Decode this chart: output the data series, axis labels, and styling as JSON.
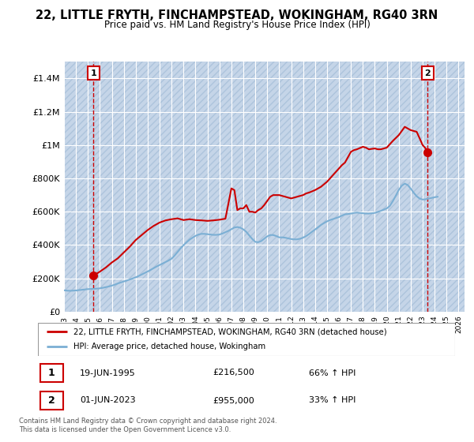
{
  "title": "22, LITTLE FRYTH, FINCHAMPSTEAD, WOKINGHAM, RG40 3RN",
  "subtitle": "Price paid vs. HM Land Registry's House Price Index (HPI)",
  "ylim": [
    0,
    1500000
  ],
  "yticks": [
    0,
    200000,
    400000,
    600000,
    800000,
    1000000,
    1200000,
    1400000
  ],
  "ytick_labels": [
    "£0",
    "£200K",
    "£400K",
    "£600K",
    "£800K",
    "£1M",
    "£1.2M",
    "£1.4M"
  ],
  "xlim_start": 1993.0,
  "xlim_end": 2026.5,
  "xtick_years": [
    1993,
    1994,
    1995,
    1996,
    1997,
    1998,
    1999,
    2000,
    2001,
    2002,
    2003,
    2004,
    2005,
    2006,
    2007,
    2008,
    2009,
    2010,
    2011,
    2012,
    2013,
    2014,
    2015,
    2016,
    2017,
    2018,
    2019,
    2020,
    2021,
    2022,
    2023,
    2024,
    2025,
    2026
  ],
  "fig_bg_color": "#ffffff",
  "plot_bg_color": "#dce6f1",
  "hatch_color": "#c5d5e8",
  "grid_color": "#ffffff",
  "red_line_color": "#cc0000",
  "blue_line_color": "#7bafd4",
  "transaction1_x": 1995.47,
  "transaction1_y": 216500,
  "transaction1_label": "1",
  "transaction2_x": 2023.42,
  "transaction2_y": 955000,
  "transaction2_label": "2",
  "legend_line1": "22, LITTLE FRYTH, FINCHAMPSTEAD, WOKINGHAM, RG40 3RN (detached house)",
  "legend_line2": "HPI: Average price, detached house, Wokingham",
  "note1_label": "1",
  "note1_date": "19-JUN-1995",
  "note1_price": "£216,500",
  "note1_hpi": "66% ↑ HPI",
  "note2_label": "2",
  "note2_date": "01-JUN-2023",
  "note2_price": "£955,000",
  "note2_hpi": "33% ↑ HPI",
  "footer": "Contains HM Land Registry data © Crown copyright and database right 2024.\nThis data is licensed under the Open Government Licence v3.0.",
  "hpi_data_x": [
    1993.0,
    1993.25,
    1993.5,
    1993.75,
    1994.0,
    1994.25,
    1994.5,
    1994.75,
    1995.0,
    1995.25,
    1995.5,
    1995.75,
    1996.0,
    1996.25,
    1996.5,
    1996.75,
    1997.0,
    1997.25,
    1997.5,
    1997.75,
    1998.0,
    1998.25,
    1998.5,
    1998.75,
    1999.0,
    1999.25,
    1999.5,
    1999.75,
    2000.0,
    2000.25,
    2000.5,
    2000.75,
    2001.0,
    2001.25,
    2001.5,
    2001.75,
    2002.0,
    2002.25,
    2002.5,
    2002.75,
    2003.0,
    2003.25,
    2003.5,
    2003.75,
    2004.0,
    2004.25,
    2004.5,
    2004.75,
    2005.0,
    2005.25,
    2005.5,
    2005.75,
    2006.0,
    2006.25,
    2006.5,
    2006.75,
    2007.0,
    2007.25,
    2007.5,
    2007.75,
    2008.0,
    2008.25,
    2008.5,
    2008.75,
    2009.0,
    2009.25,
    2009.5,
    2009.75,
    2010.0,
    2010.25,
    2010.5,
    2010.75,
    2011.0,
    2011.25,
    2011.5,
    2011.75,
    2012.0,
    2012.25,
    2012.5,
    2012.75,
    2013.0,
    2013.25,
    2013.5,
    2013.75,
    2014.0,
    2014.25,
    2014.5,
    2014.75,
    2015.0,
    2015.25,
    2015.5,
    2015.75,
    2016.0,
    2016.25,
    2016.5,
    2016.75,
    2017.0,
    2017.25,
    2017.5,
    2017.75,
    2018.0,
    2018.25,
    2018.5,
    2018.75,
    2019.0,
    2019.25,
    2019.5,
    2019.75,
    2020.0,
    2020.25,
    2020.5,
    2020.75,
    2021.0,
    2021.25,
    2021.5,
    2021.75,
    2022.0,
    2022.25,
    2022.5,
    2022.75,
    2023.0,
    2023.25,
    2023.5,
    2023.75,
    2024.0,
    2024.25
  ],
  "hpi_data_y": [
    128000,
    126000,
    125000,
    126000,
    127000,
    129000,
    131000,
    133000,
    135000,
    136000,
    137000,
    138000,
    140000,
    143000,
    147000,
    151000,
    156000,
    162000,
    169000,
    175000,
    181000,
    187000,
    193000,
    199000,
    206000,
    214000,
    223000,
    232000,
    241000,
    251000,
    261000,
    271000,
    280000,
    289000,
    298000,
    307000,
    318000,
    337000,
    358000,
    380000,
    399000,
    416000,
    432000,
    444000,
    455000,
    463000,
    467000,
    467000,
    465000,
    463000,
    461000,
    461000,
    463000,
    469000,
    477000,
    485000,
    495000,
    505000,
    508000,
    504000,
    494000,
    479000,
    457000,
    436000,
    419000,
    417000,
    424000,
    438000,
    452000,
    460000,
    460000,
    454000,
    446000,
    446000,
    444000,
    440000,
    436000,
    434000,
    434000,
    438000,
    444000,
    454000,
    466000,
    480000,
    493000,
    507000,
    521000,
    532000,
    542000,
    550000,
    556000,
    562000,
    568000,
    577000,
    584000,
    586000,
    589000,
    593000,
    595000,
    593000,
    591000,
    589000,
    589000,
    591000,
    593000,
    599000,
    605000,
    613000,
    620000,
    635000,
    663000,
    696000,
    731000,
    756000,
    769000,
    760000,
    739000,
    714000,
    693000,
    679000,
    673000,
    675000,
    679000,
    683000,
    687000,
    690000
  ],
  "red_data_x": [
    1995.47,
    1996.0,
    1996.5,
    1997.0,
    1997.5,
    1998.0,
    1998.5,
    1999.0,
    1999.5,
    2000.0,
    2000.5,
    2001.0,
    2001.5,
    2002.0,
    2002.5,
    2003.0,
    2003.5,
    2004.0,
    2004.5,
    2005.0,
    2005.5,
    2006.0,
    2006.5,
    2007.0,
    2007.25,
    2007.5,
    2007.75,
    2008.0,
    2008.25,
    2008.5,
    2008.75,
    2009.0,
    2009.25,
    2009.5,
    2009.75,
    2010.0,
    2010.25,
    2010.5,
    2011.0,
    2011.25,
    2011.5,
    2012.0,
    2012.25,
    2012.5,
    2013.0,
    2013.25,
    2013.5,
    2014.0,
    2014.25,
    2014.5,
    2015.0,
    2015.25,
    2015.5,
    2016.0,
    2016.25,
    2016.5,
    2017.0,
    2017.25,
    2017.5,
    2018.0,
    2018.25,
    2018.5,
    2019.0,
    2019.25,
    2019.5,
    2020.0,
    2020.25,
    2020.5,
    2021.0,
    2021.25,
    2021.5,
    2022.0,
    2022.25,
    2022.5,
    2023.0,
    2023.25,
    2023.42
  ],
  "red_data_y": [
    216500,
    240000,
    265000,
    295000,
    320000,
    355000,
    390000,
    430000,
    460000,
    490000,
    515000,
    535000,
    548000,
    555000,
    560000,
    550000,
    555000,
    550000,
    548000,
    545000,
    548000,
    552000,
    558000,
    740000,
    730000,
    610000,
    620000,
    620000,
    640000,
    600000,
    600000,
    595000,
    610000,
    620000,
    640000,
    665000,
    690000,
    700000,
    700000,
    695000,
    690000,
    680000,
    685000,
    690000,
    700000,
    710000,
    715000,
    730000,
    740000,
    750000,
    780000,
    800000,
    820000,
    860000,
    880000,
    895000,
    960000,
    970000,
    975000,
    990000,
    985000,
    975000,
    980000,
    975000,
    975000,
    985000,
    1005000,
    1025000,
    1060000,
    1085000,
    1110000,
    1090000,
    1085000,
    1080000,
    1000000,
    980000,
    955000
  ]
}
